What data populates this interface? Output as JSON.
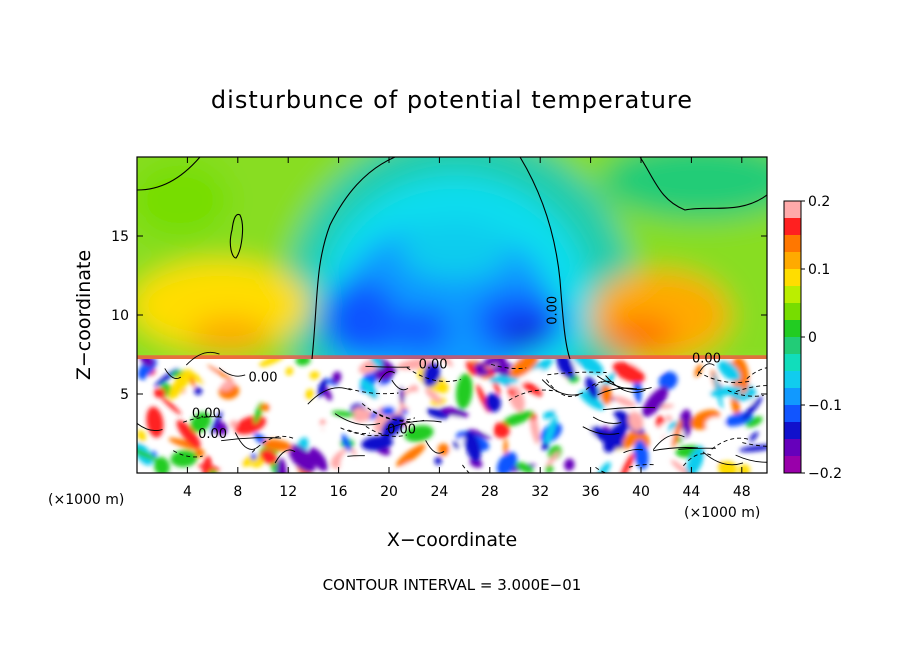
{
  "chart_data": {
    "type": "heatmap",
    "title": "disturbunce of potential temperature",
    "xlabel": "X−coordinate",
    "ylabel": "Z−coordinate",
    "x_unit_left": "(×1000 m)",
    "x_unit_right": "(×1000 m)",
    "xlim": [
      0,
      50
    ],
    "ylim": [
      0,
      20
    ],
    "x_ticks": [
      4,
      8,
      12,
      16,
      20,
      24,
      28,
      32,
      36,
      40,
      44,
      48
    ],
    "x_tick_labels": [
      "4",
      "8",
      "12",
      "16",
      "20",
      "24",
      "28",
      "32",
      "36",
      "40",
      "44",
      "48"
    ],
    "y_ticks": [
      5,
      10,
      15
    ],
    "y_tick_labels": [
      "5",
      "10",
      "15"
    ],
    "colorbar": {
      "min": -0.2,
      "max": 0.2,
      "tick_values": [
        0.2,
        0.1,
        0,
        -0.1,
        -0.2
      ],
      "tick_labels": [
        "0.2",
        "0.1",
        "0",
        "−0.1",
        "−0.2"
      ],
      "colors": [
        "#ffaaaa",
        "#ff2020",
        "#ff7700",
        "#ffaa00",
        "#ffdd00",
        "#bbee00",
        "#77dd00",
        "#22cc22",
        "#22cc77",
        "#11ddbb",
        "#11ccee",
        "#1199ff",
        "#1155ff",
        "#1111cc",
        "#6600bb",
        "#9900aa"
      ]
    },
    "contour_interval_text": "CONTOUR INTERVAL = 3.000E−01",
    "contour_labels": [
      {
        "text": "0.00",
        "x": 33.3,
        "z": 10.3
      },
      {
        "text": "0.00",
        "x": 10.0,
        "z": 5.8
      },
      {
        "text": "0.00",
        "x": 23.5,
        "z": 6.6
      },
      {
        "text": "0.00",
        "x": 45.2,
        "z": 7.0
      },
      {
        "text": "0.00",
        "x": 5.5,
        "z": 3.5
      },
      {
        "text": "0.00",
        "x": 6.0,
        "z": 2.2
      },
      {
        "text": "0.00",
        "x": 21.0,
        "z": 2.5
      }
    ],
    "inversion_height": 7.2,
    "grid": false,
    "legend": "right"
  }
}
